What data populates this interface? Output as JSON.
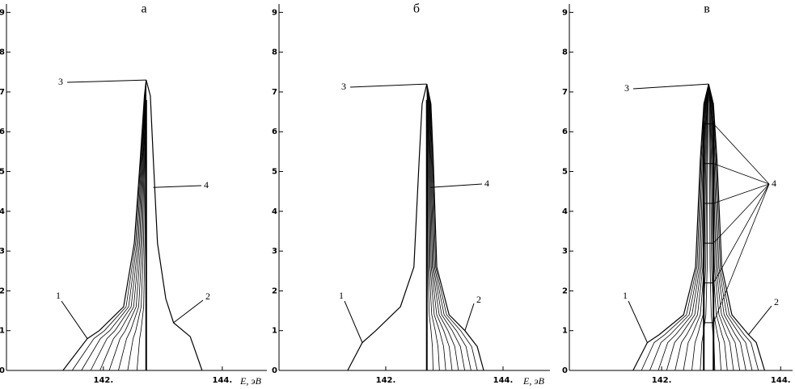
{
  "chart_data": [
    {
      "type": "line",
      "title": "а",
      "xlabel": "E, эВ",
      "family": "left",
      "color": "#000000",
      "xlim": [
        140.37,
        144.75
      ],
      "ylim": [
        0,
        9.21
      ],
      "xticks": [
        {
          "value": 142,
          "label": "142."
        },
        {
          "value": 144,
          "label": "144."
        }
      ],
      "yticks": [
        0,
        1,
        2,
        3,
        4,
        5,
        6,
        7,
        8,
        9
      ],
      "series": [
        {
          "name": "1",
          "x": [
            141.32,
            141.73,
            141.93,
            142.34,
            142.52,
            142.62,
            142.69,
            142.72
          ],
          "y": [
            0,
            0.8,
            1.0,
            1.6,
            3.2,
            5.3,
            6.9,
            7.3
          ]
        },
        {
          "name": "2",
          "x": [
            142.72,
            142.79,
            142.84,
            142.91,
            143.05,
            143.18,
            143.46,
            143.52,
            143.66
          ],
          "y": [
            7.3,
            6.9,
            5.3,
            3.2,
            1.8,
            1.2,
            0.85,
            0.6,
            0
          ]
        }
      ],
      "annotations": [
        "3",
        "4"
      ]
    },
    {
      "type": "line",
      "title": "б",
      "xlabel": "E, эВ",
      "family": "right",
      "color": "#000000",
      "xlim": [
        140.18,
        144.8
      ],
      "ylim": [
        0,
        9.21
      ],
      "xticks": [
        {
          "value": 142,
          "label": "142."
        },
        {
          "value": 144,
          "label": "144."
        }
      ],
      "yticks": [
        0,
        1,
        2,
        3,
        4,
        5,
        6,
        7,
        8,
        9
      ],
      "series": [
        {
          "name": "1",
          "x": [
            141.35,
            141.6,
            141.83,
            142.25,
            142.48,
            142.57,
            142.62,
            142.7
          ],
          "y": [
            0,
            0.7,
            1.0,
            1.6,
            2.6,
            5.3,
            6.7,
            7.2
          ]
        },
        {
          "name": "2",
          "x": [
            142.7,
            142.77,
            142.81,
            142.87,
            143.08,
            143.35,
            143.56,
            143.67
          ],
          "y": [
            7.2,
            6.7,
            5.3,
            2.6,
            1.4,
            1.0,
            0.6,
            0
          ]
        }
      ],
      "annotations": [
        "3",
        "4"
      ]
    },
    {
      "type": "line",
      "title": "в",
      "family": "both",
      "color": "#000000",
      "xlim": [
        140.45,
        144.2
      ],
      "ylim": [
        0,
        9.21
      ],
      "xticks": [
        {
          "value": 142,
          "label": "142."
        },
        {
          "value": 144,
          "label": "144."
        }
      ],
      "yticks": [
        0,
        1,
        2,
        3,
        4,
        5,
        6,
        7,
        8,
        9
      ],
      "series": [
        {
          "name": "1",
          "x": [
            141.52,
            141.76,
            141.96,
            142.37,
            142.57,
            142.65,
            142.71,
            142.79
          ],
          "y": [
            0,
            0.7,
            0.9,
            1.4,
            2.6,
            5.3,
            6.7,
            7.2
          ]
        },
        {
          "name": "2",
          "x": [
            142.79,
            142.87,
            142.93,
            143.01,
            143.18,
            143.46,
            143.59,
            143.73
          ],
          "y": [
            7.2,
            6.7,
            5.3,
            2.6,
            1.4,
            0.9,
            0.7,
            0
          ]
        }
      ],
      "annotations": [
        "3",
        "4"
      ]
    }
  ]
}
